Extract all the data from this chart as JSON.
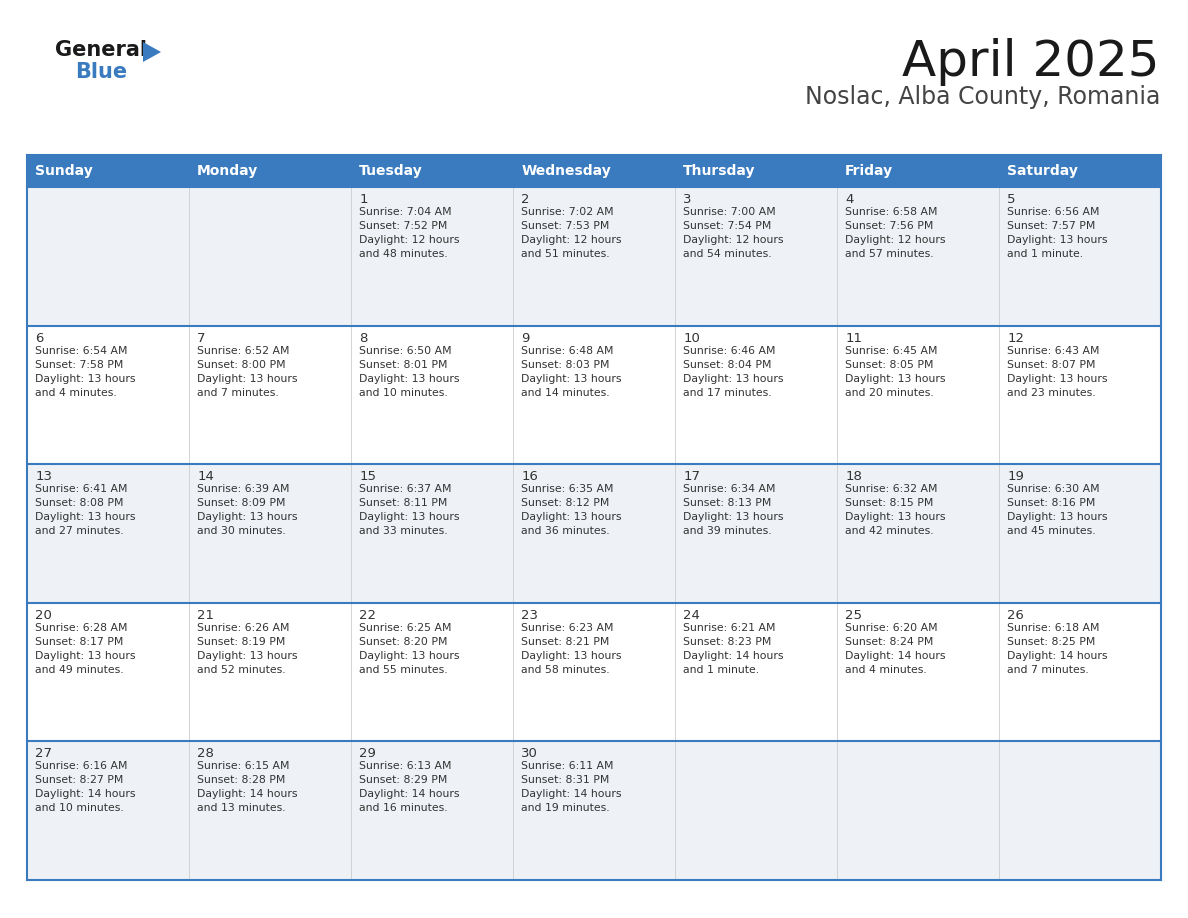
{
  "title": "April 2025",
  "subtitle": "Noslac, Alba County, Romania",
  "header_bg": "#3a7abf",
  "header_text": "#ffffff",
  "row_bg_odd": "#eef2f7",
  "row_bg_even": "#ffffff",
  "border_color": "#3a7abf",
  "text_color": "#333333",
  "days_of_week": [
    "Sunday",
    "Monday",
    "Tuesday",
    "Wednesday",
    "Thursday",
    "Friday",
    "Saturday"
  ],
  "weeks": [
    [
      {
        "day": "",
        "info": ""
      },
      {
        "day": "",
        "info": ""
      },
      {
        "day": "1",
        "info": "Sunrise: 7:04 AM\nSunset: 7:52 PM\nDaylight: 12 hours\nand 48 minutes."
      },
      {
        "day": "2",
        "info": "Sunrise: 7:02 AM\nSunset: 7:53 PM\nDaylight: 12 hours\nand 51 minutes."
      },
      {
        "day": "3",
        "info": "Sunrise: 7:00 AM\nSunset: 7:54 PM\nDaylight: 12 hours\nand 54 minutes."
      },
      {
        "day": "4",
        "info": "Sunrise: 6:58 AM\nSunset: 7:56 PM\nDaylight: 12 hours\nand 57 minutes."
      },
      {
        "day": "5",
        "info": "Sunrise: 6:56 AM\nSunset: 7:57 PM\nDaylight: 13 hours\nand 1 minute."
      }
    ],
    [
      {
        "day": "6",
        "info": "Sunrise: 6:54 AM\nSunset: 7:58 PM\nDaylight: 13 hours\nand 4 minutes."
      },
      {
        "day": "7",
        "info": "Sunrise: 6:52 AM\nSunset: 8:00 PM\nDaylight: 13 hours\nand 7 minutes."
      },
      {
        "day": "8",
        "info": "Sunrise: 6:50 AM\nSunset: 8:01 PM\nDaylight: 13 hours\nand 10 minutes."
      },
      {
        "day": "9",
        "info": "Sunrise: 6:48 AM\nSunset: 8:03 PM\nDaylight: 13 hours\nand 14 minutes."
      },
      {
        "day": "10",
        "info": "Sunrise: 6:46 AM\nSunset: 8:04 PM\nDaylight: 13 hours\nand 17 minutes."
      },
      {
        "day": "11",
        "info": "Sunrise: 6:45 AM\nSunset: 8:05 PM\nDaylight: 13 hours\nand 20 minutes."
      },
      {
        "day": "12",
        "info": "Sunrise: 6:43 AM\nSunset: 8:07 PM\nDaylight: 13 hours\nand 23 minutes."
      }
    ],
    [
      {
        "day": "13",
        "info": "Sunrise: 6:41 AM\nSunset: 8:08 PM\nDaylight: 13 hours\nand 27 minutes."
      },
      {
        "day": "14",
        "info": "Sunrise: 6:39 AM\nSunset: 8:09 PM\nDaylight: 13 hours\nand 30 minutes."
      },
      {
        "day": "15",
        "info": "Sunrise: 6:37 AM\nSunset: 8:11 PM\nDaylight: 13 hours\nand 33 minutes."
      },
      {
        "day": "16",
        "info": "Sunrise: 6:35 AM\nSunset: 8:12 PM\nDaylight: 13 hours\nand 36 minutes."
      },
      {
        "day": "17",
        "info": "Sunrise: 6:34 AM\nSunset: 8:13 PM\nDaylight: 13 hours\nand 39 minutes."
      },
      {
        "day": "18",
        "info": "Sunrise: 6:32 AM\nSunset: 8:15 PM\nDaylight: 13 hours\nand 42 minutes."
      },
      {
        "day": "19",
        "info": "Sunrise: 6:30 AM\nSunset: 8:16 PM\nDaylight: 13 hours\nand 45 minutes."
      }
    ],
    [
      {
        "day": "20",
        "info": "Sunrise: 6:28 AM\nSunset: 8:17 PM\nDaylight: 13 hours\nand 49 minutes."
      },
      {
        "day": "21",
        "info": "Sunrise: 6:26 AM\nSunset: 8:19 PM\nDaylight: 13 hours\nand 52 minutes."
      },
      {
        "day": "22",
        "info": "Sunrise: 6:25 AM\nSunset: 8:20 PM\nDaylight: 13 hours\nand 55 minutes."
      },
      {
        "day": "23",
        "info": "Sunrise: 6:23 AM\nSunset: 8:21 PM\nDaylight: 13 hours\nand 58 minutes."
      },
      {
        "day": "24",
        "info": "Sunrise: 6:21 AM\nSunset: 8:23 PM\nDaylight: 14 hours\nand 1 minute."
      },
      {
        "day": "25",
        "info": "Sunrise: 6:20 AM\nSunset: 8:24 PM\nDaylight: 14 hours\nand 4 minutes."
      },
      {
        "day": "26",
        "info": "Sunrise: 6:18 AM\nSunset: 8:25 PM\nDaylight: 14 hours\nand 7 minutes."
      }
    ],
    [
      {
        "day": "27",
        "info": "Sunrise: 6:16 AM\nSunset: 8:27 PM\nDaylight: 14 hours\nand 10 minutes."
      },
      {
        "day": "28",
        "info": "Sunrise: 6:15 AM\nSunset: 8:28 PM\nDaylight: 14 hours\nand 13 minutes."
      },
      {
        "day": "29",
        "info": "Sunrise: 6:13 AM\nSunset: 8:29 PM\nDaylight: 14 hours\nand 16 minutes."
      },
      {
        "day": "30",
        "info": "Sunrise: 6:11 AM\nSunset: 8:31 PM\nDaylight: 14 hours\nand 19 minutes."
      },
      {
        "day": "",
        "info": ""
      },
      {
        "day": "",
        "info": ""
      },
      {
        "day": "",
        "info": ""
      }
    ]
  ],
  "logo_text_general": "General",
  "logo_text_blue": "Blue",
  "logo_triangle_color": "#3a7abf",
  "fig_width": 11.88,
  "fig_height": 9.18,
  "dpi": 100
}
